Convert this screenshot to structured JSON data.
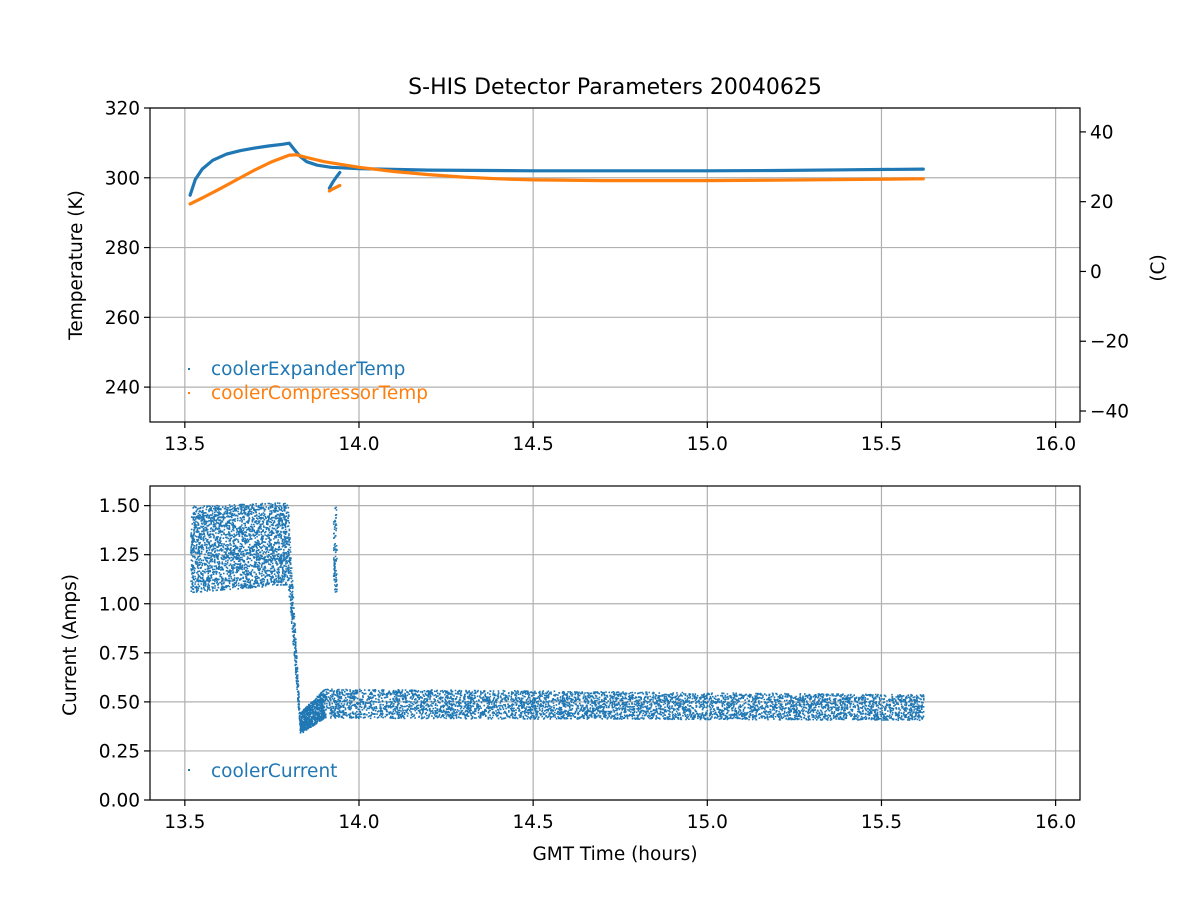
{
  "chart_data": [
    {
      "type": "scatter",
      "title": "S-HIS Detector Parameters 20040625",
      "xlabel": "",
      "ylabel": "Temperature (K)",
      "y2label": "(C)",
      "xlim": [
        13.4,
        16.07
      ],
      "ylim": [
        230,
        320
      ],
      "y2lim": [
        -43.15,
        46.85
      ],
      "xticks": [
        13.5,
        14.0,
        14.5,
        15.0,
        15.5,
        16.0
      ],
      "xtick_labels": [
        "13.5",
        "14.0",
        "14.5",
        "15.0",
        "15.5",
        "16.0"
      ],
      "yticks": [
        240,
        260,
        280,
        300,
        320
      ],
      "ytick_labels": [
        "240",
        "260",
        "280",
        "300",
        "320"
      ],
      "y2ticks": [
        -40,
        -20,
        0,
        20,
        40
      ],
      "y2tick_labels": [
        "−40",
        "−20",
        "0",
        "20",
        "40"
      ],
      "grid": true,
      "legend_position": "lower-left",
      "series": [
        {
          "name": "coolerExpanderTemp",
          "color": "#1f77b4",
          "segments": [
            [
              [
                13.515,
                295.0
              ],
              [
                13.53,
                299.5
              ],
              [
                13.55,
                302.5
              ],
              [
                13.58,
                305.0
              ],
              [
                13.62,
                306.8
              ],
              [
                13.66,
                307.8
              ],
              [
                13.7,
                308.5
              ],
              [
                13.74,
                309.1
              ],
              [
                13.78,
                309.6
              ],
              [
                13.8,
                309.9
              ],
              [
                13.815,
                308.0
              ],
              [
                13.83,
                306.2
              ],
              [
                13.85,
                304.6
              ],
              [
                13.88,
                303.6
              ],
              [
                13.92,
                303.0
              ],
              [
                14.0,
                302.6
              ],
              [
                14.2,
                302.2
              ],
              [
                14.5,
                302.0
              ],
              [
                14.8,
                302.0
              ],
              [
                15.0,
                302.0
              ],
              [
                15.2,
                302.1
              ],
              [
                15.4,
                302.3
              ],
              [
                15.62,
                302.5
              ]
            ],
            [
              [
                13.915,
                297.0
              ],
              [
                13.925,
                298.8
              ],
              [
                13.935,
                300.2
              ],
              [
                13.945,
                301.5
              ]
            ]
          ]
        },
        {
          "name": "coolerCompressorTemp",
          "color": "#ff7f0e",
          "segments": [
            [
              [
                13.515,
                292.5
              ],
              [
                13.55,
                294.2
              ],
              [
                13.6,
                296.8
              ],
              [
                13.65,
                299.5
              ],
              [
                13.7,
                302.2
              ],
              [
                13.75,
                304.6
              ],
              [
                13.8,
                306.5
              ],
              [
                13.82,
                306.6
              ],
              [
                13.85,
                305.8
              ],
              [
                13.9,
                304.6
              ],
              [
                14.0,
                303.0
              ],
              [
                14.1,
                301.8
              ],
              [
                14.2,
                300.9
              ],
              [
                14.3,
                300.2
              ],
              [
                14.4,
                299.7
              ],
              [
                14.5,
                299.4
              ],
              [
                14.7,
                299.2
              ],
              [
                15.0,
                299.2
              ],
              [
                15.2,
                299.3
              ],
              [
                15.4,
                299.5
              ],
              [
                15.62,
                299.7
              ]
            ],
            [
              [
                13.915,
                296.2
              ],
              [
                13.925,
                296.8
              ],
              [
                13.935,
                297.3
              ],
              [
                13.945,
                297.8
              ]
            ]
          ]
        }
      ]
    },
    {
      "type": "scatter",
      "title": "",
      "xlabel": "GMT Time (hours)",
      "ylabel": "Current (Amps)",
      "xlim": [
        13.4,
        16.07
      ],
      "ylim": [
        0.0,
        1.6
      ],
      "xticks": [
        13.5,
        14.0,
        14.5,
        15.0,
        15.5,
        16.0
      ],
      "xtick_labels": [
        "13.5",
        "14.0",
        "14.5",
        "15.0",
        "15.5",
        "16.0"
      ],
      "yticks": [
        0.0,
        0.25,
        0.5,
        0.75,
        1.0,
        1.25,
        1.5
      ],
      "ytick_labels": [
        "0.00",
        "0.25",
        "0.50",
        "0.75",
        "1.00",
        "1.25",
        "1.50"
      ],
      "grid": true,
      "legend_position": "lower-left",
      "series": [
        {
          "name": "coolerCurrent",
          "color": "#1f77b4",
          "ranges": [
            {
              "x": [
                13.515,
                13.795
              ],
              "y_low": [
                1.06,
                1.1
              ],
              "y_high": [
                1.5,
                1.52
              ]
            },
            {
              "x": [
                13.795,
                13.83
              ],
              "y_low": [
                1.1,
                0.34
              ],
              "y_high": [
                1.5,
                0.4
              ]
            },
            {
              "x": [
                13.83,
                13.9
              ],
              "y_low": [
                0.34,
                0.42
              ],
              "y_high": [
                0.45,
                0.57
              ]
            },
            {
              "x": [
                13.9,
                15.62
              ],
              "y_low": [
                0.42,
                0.41
              ],
              "y_high": [
                0.57,
                0.54
              ]
            },
            {
              "x": [
                13.925,
                13.935
              ],
              "y_low": [
                1.06,
                1.06
              ],
              "y_high": [
                1.5,
                1.5
              ]
            }
          ]
        }
      ]
    }
  ]
}
